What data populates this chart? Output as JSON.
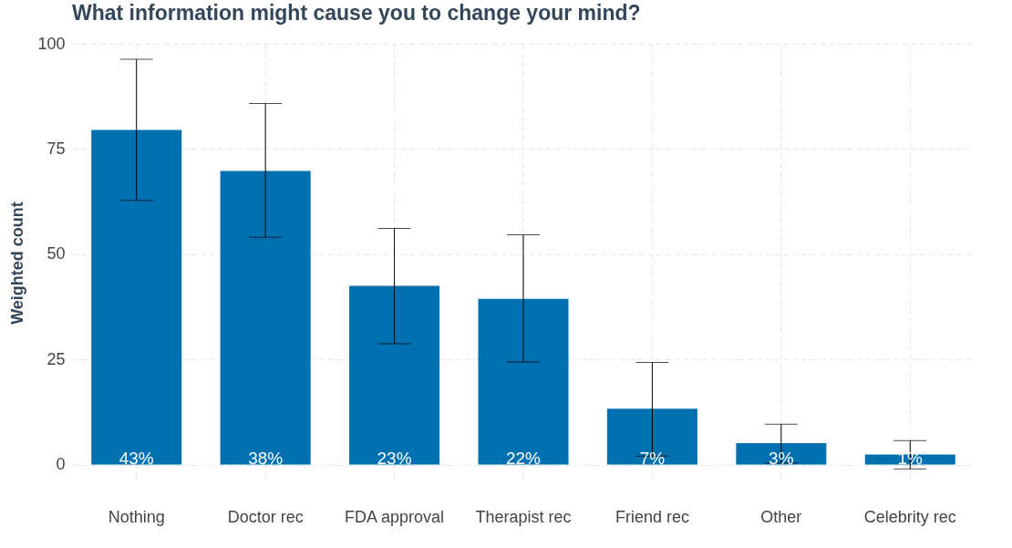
{
  "chart_data": {
    "type": "bar",
    "title": "What information might cause you to change your mind?",
    "ylabel": "Weighted count",
    "categories": [
      "Nothing",
      "Doctor rec",
      "FDA approval",
      "Therapist rec",
      "Friend rec",
      "Other",
      "Celebrity rec"
    ],
    "values": [
      79.5,
      69.8,
      42.5,
      39.4,
      13.3,
      5.1,
      2.4
    ],
    "errors": [
      [
        62.8,
        96.3
      ],
      [
        54,
        85.8
      ],
      [
        28.7,
        56.1
      ],
      [
        24.4,
        54.6
      ],
      [
        2,
        24.3
      ],
      [
        0.4,
        9.6
      ],
      [
        -1,
        5.7
      ]
    ],
    "annotations": [
      {
        "text": "43%",
        "x": "Nothing",
        "y": 0
      },
      {
        "text": "38%",
        "x": "Doctor rec",
        "y": 0
      },
      {
        "text": "23%",
        "x": "FDA approval",
        "y": 0
      },
      {
        "text": "22%",
        "x": "Therapist rec",
        "y": 0
      },
      {
        "text": "7%",
        "x": "Friend rec",
        "y": 0
      },
      {
        "text": "3%",
        "x": "Other",
        "y": 0
      },
      {
        "text": "1%",
        "x": "Celebrity rec",
        "y": 0
      }
    ],
    "color": "#0070b0",
    "ylim": [
      -4,
      100
    ],
    "yticks": [
      0,
      25,
      50,
      75,
      100
    ],
    "grid": true
  }
}
